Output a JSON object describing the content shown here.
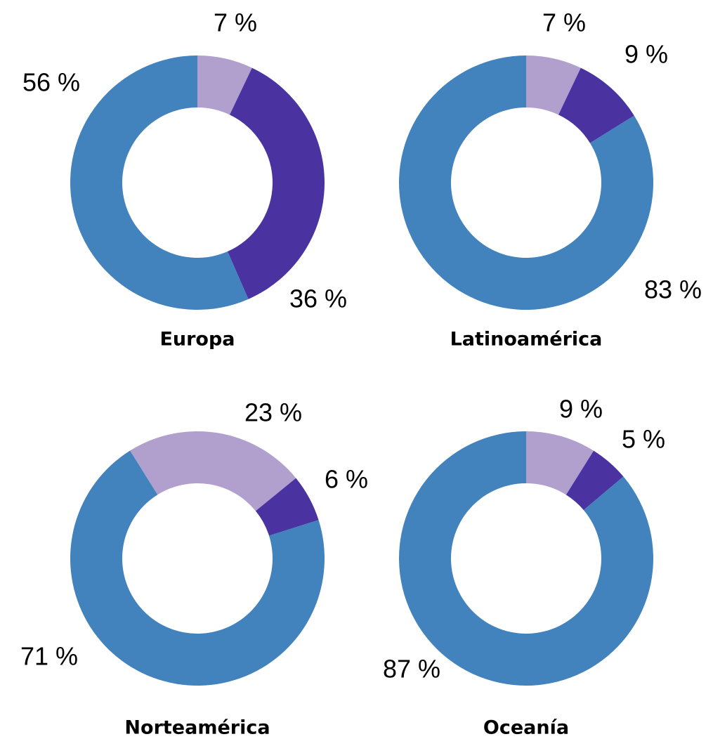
{
  "chart_data": [
    {
      "type": "pie",
      "title": "Europa",
      "values": [
        7,
        36,
        56
      ],
      "value_labels": [
        "7 %",
        "36 %",
        "56 %"
      ],
      "colors": [
        "#b1a0cd",
        "#4a33a1",
        "#4282bd"
      ],
      "start_angle": 0,
      "donut": true
    },
    {
      "type": "pie",
      "title": "Latinoamérica",
      "values": [
        7,
        9,
        83
      ],
      "value_labels": [
        "7 %",
        "9 %",
        "83 %"
      ],
      "colors": [
        "#b1a0cd",
        "#4a33a1",
        "#4282bd"
      ],
      "start_angle": 0,
      "donut": true
    },
    {
      "type": "pie",
      "title": "Norteamérica",
      "values": [
        23,
        6,
        71
      ],
      "value_labels": [
        "23 %",
        "6 %",
        "71 %"
      ],
      "colors": [
        "#b1a0cd",
        "#4a33a1",
        "#4282bd"
      ],
      "start_angle": -32,
      "donut": true
    },
    {
      "type": "pie",
      "title": "Oceanía",
      "values": [
        9,
        5,
        87
      ],
      "value_labels": [
        "9 %",
        "5 %",
        "87 %"
      ],
      "colors": [
        "#b1a0cd",
        "#4a33a1",
        "#4282bd"
      ],
      "start_angle": 0,
      "donut": true
    }
  ]
}
